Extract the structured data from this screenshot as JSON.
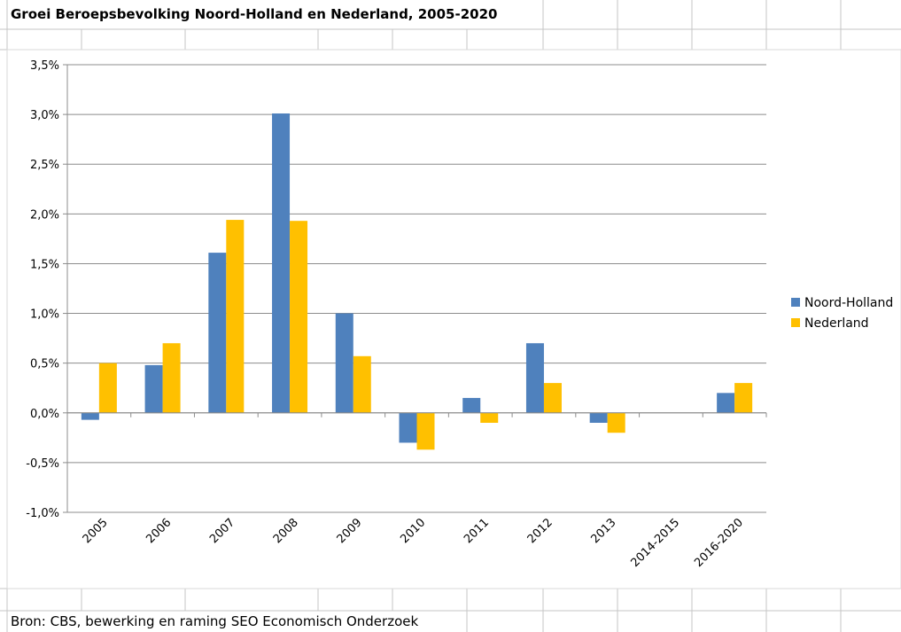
{
  "sheet": {
    "title": "Groei Beroepsbevolking Noord-Holland en Nederland, 2005-2020",
    "source": "Bron: CBS, bewerking en raming SEO Economisch Onderzoek"
  },
  "chart_data": {
    "type": "bar",
    "title": "",
    "xlabel": "",
    "ylabel": "",
    "categories": [
      "2005",
      "2006",
      "2007",
      "2008",
      "2009",
      "2010",
      "2011",
      "2012",
      "2013",
      "2014-2015",
      "2016-2020"
    ],
    "series": [
      {
        "name": "Noord-Holland",
        "color": "#4f81bd",
        "values": [
          -0.07,
          0.48,
          1.61,
          3.01,
          1.0,
          -0.3,
          0.15,
          0.7,
          -0.1,
          0.0,
          0.2
        ]
      },
      {
        "name": "Nederland",
        "color": "#ffc000",
        "values": [
          0.5,
          0.7,
          1.94,
          1.93,
          0.57,
          -0.37,
          -0.1,
          0.3,
          -0.2,
          0.0,
          0.3
        ]
      }
    ],
    "ylim": [
      -1.0,
      3.5
    ],
    "yticks": [
      "3,5%",
      "3,0%",
      "2,5%",
      "2,0%",
      "1,5%",
      "1,0%",
      "0,5%",
      "0,0%",
      "-0,5%",
      "-1,0%"
    ],
    "grid": true,
    "legend_position": "right"
  }
}
